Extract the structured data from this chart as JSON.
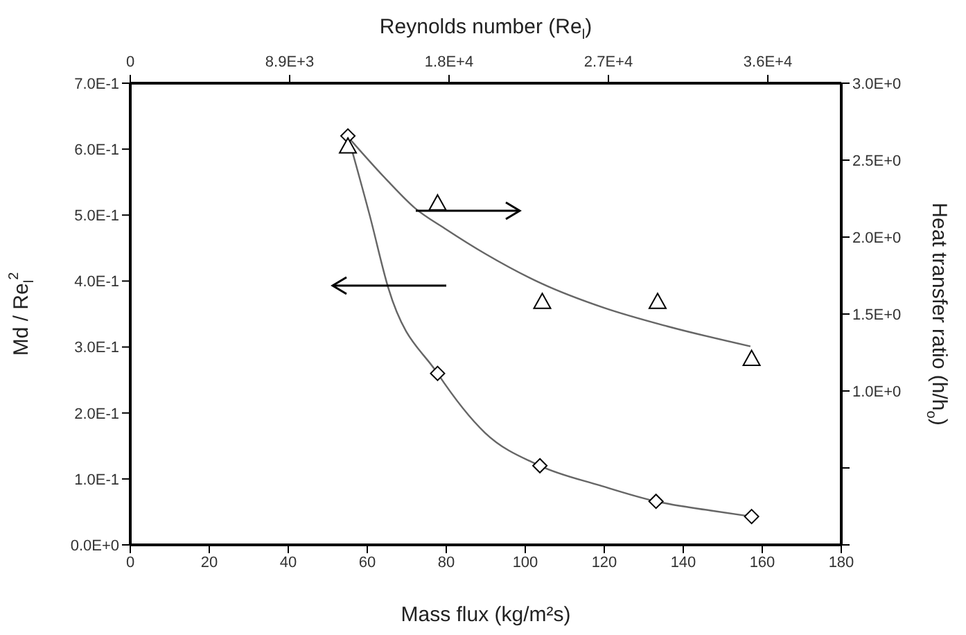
{
  "chart_data": {
    "type": "scatter",
    "xlabel": "Mass flux (kg/m²s)",
    "ylabel": "Md / Re$_{l}$$^{2}$",
    "y2label": "Heat transfer ratio (h/h$_{o}$)",
    "x2label": "Reynolds number (Re$_{l}$)",
    "xlim": [
      0,
      180
    ],
    "xticks": [
      0,
      20,
      40,
      60,
      80,
      100,
      120,
      140,
      160,
      180
    ],
    "x2lim": [
      0,
      39700
    ],
    "x2ticks": [
      {
        "value": 0,
        "label": "0"
      },
      {
        "value": 8900,
        "label": "8.9E+3"
      },
      {
        "value": 17800,
        "label": "1.8E+4"
      },
      {
        "value": 26700,
        "label": "2.7E+4"
      },
      {
        "value": 35600,
        "label": "3.6E+4"
      }
    ],
    "ylim": [
      0,
      0.7
    ],
    "yticks": [
      {
        "value": 0,
        "label": "0.0E+0"
      },
      {
        "value": 0.1,
        "label": "1.0E-1"
      },
      {
        "value": 0.2,
        "label": "2.0E-1"
      },
      {
        "value": 0.3,
        "label": "3.0E-1"
      },
      {
        "value": 0.4,
        "label": "4.0E-1"
      },
      {
        "value": 0.5,
        "label": "5.0E-1"
      },
      {
        "value": 0.6,
        "label": "6.0E-1"
      },
      {
        "value": 0.7,
        "label": "7.0E-1"
      }
    ],
    "y2lim": [
      0,
      3.0
    ],
    "y2ticks": [
      {
        "value": 0,
        "label": null
      },
      {
        "value": 0.5,
        "label": null
      },
      {
        "value": 1.0,
        "label": "1.0E+0"
      },
      {
        "value": 1.5,
        "label": "1.5E+0"
      },
      {
        "value": 2.0,
        "label": "2.0E+0"
      },
      {
        "value": 2.5,
        "label": "2.5E+0"
      },
      {
        "value": 3.0,
        "label": "3.0E+0"
      }
    ],
    "grid": false,
    "legend": false,
    "series": [
      {
        "type": "line",
        "color": "#666666",
        "marker": "none",
        "x": [
          55.1,
          60.6,
          65.3,
          77.8,
          89.8,
          103.7,
          119,
          133.1,
          147,
          157.3
        ],
        "values": [
          0.62,
          0.5,
          0.39,
          0.26,
          0.17,
          0.12,
          0.09,
          0.066,
          0.052,
          0.043
        ]
      },
      {
        "type": "line",
        "axis": "y2",
        "color": "#666666",
        "marker": "none",
        "x": [
          55.5,
          65,
          72,
          80,
          90,
          104,
          120,
          136,
          157
        ],
        "values": [
          2.64,
          2.37,
          2.19,
          2.05,
          1.89,
          1.7,
          1.54,
          1.42,
          1.29
        ]
      },
      {
        "color": "#000000",
        "marker": "diamond",
        "x": [
          55.1,
          77.8,
          103.7,
          133.1,
          157.3
        ],
        "values": [
          0.62,
          0.26,
          0.12,
          0.066,
          0.043
        ]
      },
      {
        "axis": "y2",
        "color": "#000000",
        "marker": "triangle",
        "x": [
          55.1,
          77.8,
          104.3,
          133.5,
          157.3
        ],
        "values": [
          2.59,
          2.22,
          1.58,
          1.58,
          1.21
        ]
      }
    ]
  }
}
